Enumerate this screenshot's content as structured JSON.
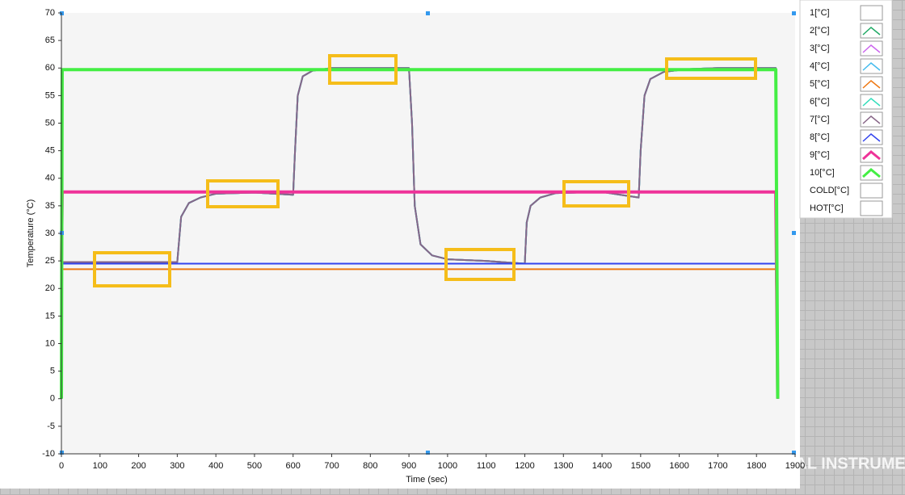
{
  "chart_data": {
    "type": "line",
    "xlabel": "Time (sec)",
    "ylabel": "Temperature (°C)",
    "xlim": [
      0,
      1900
    ],
    "ylim": [
      -10,
      70
    ],
    "xticks": [
      0,
      100,
      200,
      300,
      400,
      500,
      600,
      700,
      800,
      900,
      1000,
      1100,
      1200,
      1300,
      1400,
      1500,
      1600,
      1700,
      1800,
      1900
    ],
    "yticks": [
      -10,
      -5,
      0,
      5,
      10,
      15,
      20,
      25,
      30,
      35,
      40,
      45,
      50,
      55,
      60,
      65,
      70
    ],
    "grid": false,
    "legend": "right",
    "watermark": "NATIONAL INSTRUMENTS",
    "x": [
      0,
      2,
      300,
      310,
      330,
      360,
      400,
      500,
      600,
      605,
      612,
      625,
      650,
      700,
      800,
      900,
      908,
      915,
      930,
      960,
      1000,
      1100,
      1200,
      1205,
      1215,
      1240,
      1280,
      1400,
      1495,
      1500,
      1510,
      1525,
      1560,
      1620,
      1700,
      1850,
      1855
    ],
    "series": [
      {
        "name": "1[°C]",
        "color": "#ffffff",
        "values": [
          null,
          null,
          null,
          null,
          null,
          null,
          null,
          null,
          null,
          null,
          null,
          null,
          null,
          null,
          null,
          null,
          null,
          null,
          null,
          null,
          null,
          null,
          null,
          null,
          null,
          null,
          null,
          null,
          null,
          null,
          null,
          null,
          null,
          null,
          null,
          null,
          null
        ]
      },
      {
        "name": "2[°C]",
        "color": "#22aa66",
        "values": [
          0,
          24.8,
          24.8,
          33,
          35.5,
          36.5,
          37.2,
          37.4,
          37,
          45,
          55,
          58.5,
          59.5,
          60,
          60,
          60,
          50,
          35,
          28,
          26,
          25.3,
          25,
          24.5,
          32,
          35,
          36.5,
          37.3,
          37.5,
          36.5,
          45,
          55,
          58,
          59.3,
          59.8,
          60,
          60,
          0
        ]
      },
      {
        "name": "3[°C]",
        "color": "#cc66ee",
        "values": [
          0,
          24.8,
          24.8,
          33,
          35.5,
          36.5,
          37.2,
          37.4,
          37,
          45,
          55,
          58.5,
          59.5,
          60,
          60,
          60,
          50,
          35,
          28,
          26,
          25.3,
          25,
          24.5,
          32,
          35,
          36.5,
          37.3,
          37.5,
          36.5,
          45,
          55,
          58,
          59.3,
          59.8,
          60,
          60,
          0
        ]
      },
      {
        "name": "4[°C]",
        "color": "#44bbee",
        "values": [
          0,
          24.8,
          24.8,
          33,
          35.5,
          36.5,
          37.2,
          37.4,
          37,
          45,
          55,
          58.5,
          59.5,
          60,
          60,
          60,
          50,
          35,
          28,
          26,
          25.3,
          25,
          24.5,
          32,
          35,
          36.5,
          37.3,
          37.5,
          36.5,
          45,
          55,
          58,
          59.3,
          59.8,
          60,
          60,
          0
        ]
      },
      {
        "name": "5[°C]",
        "color": "#ee7711",
        "values": [
          0,
          23.5,
          23.5,
          23.5,
          23.5,
          23.5,
          23.5,
          23.5,
          23.5,
          23.5,
          23.5,
          23.5,
          23.5,
          23.5,
          23.5,
          23.5,
          23.5,
          23.5,
          23.5,
          23.5,
          23.5,
          23.5,
          23.5,
          23.5,
          23.5,
          23.5,
          23.5,
          23.5,
          23.5,
          23.5,
          23.5,
          23.5,
          23.5,
          23.5,
          23.5,
          23.5,
          0
        ]
      },
      {
        "name": "6[°C]",
        "color": "#33ddbb",
        "values": [
          0,
          24.8,
          24.8,
          33,
          35.5,
          36.5,
          37.2,
          37.4,
          37,
          45,
          55,
          58.5,
          59.5,
          60,
          60,
          60,
          50,
          35,
          28,
          26,
          25.3,
          25,
          24.5,
          32,
          35,
          36.5,
          37.3,
          37.5,
          36.5,
          45,
          55,
          58,
          59.3,
          59.8,
          60,
          60,
          0
        ]
      },
      {
        "name": "7[°C]",
        "color": "#886688",
        "values": [
          0,
          24.8,
          24.8,
          33,
          35.5,
          36.5,
          37.2,
          37.4,
          37,
          45,
          55,
          58.5,
          59.5,
          60,
          60,
          60,
          50,
          35,
          28,
          26,
          25.3,
          25,
          24.5,
          32,
          35,
          36.5,
          37.3,
          37.5,
          36.5,
          45,
          55,
          58,
          59.3,
          59.8,
          60,
          60,
          0
        ]
      },
      {
        "name": "8[°C]",
        "color": "#3344ee",
        "values": [
          0,
          24.5,
          24.5,
          24.5,
          24.5,
          24.5,
          24.5,
          24.5,
          24.5,
          24.5,
          24.5,
          24.5,
          24.5,
          24.5,
          24.5,
          24.5,
          24.5,
          24.5,
          24.5,
          24.5,
          24.5,
          24.5,
          24.5,
          24.5,
          24.5,
          24.5,
          24.5,
          24.5,
          24.5,
          24.5,
          24.5,
          24.5,
          24.5,
          24.5,
          24.5,
          24.5,
          0
        ]
      },
      {
        "name": "9[°C]",
        "color": "#ee3399",
        "values": [
          25,
          37.5,
          37.5,
          37.5,
          37.5,
          37.5,
          37.5,
          37.5,
          37.5,
          37.5,
          37.5,
          37.5,
          37.5,
          37.5,
          37.5,
          37.5,
          37.5,
          37.5,
          37.5,
          37.5,
          37.5,
          37.5,
          37.5,
          37.5,
          37.5,
          37.5,
          37.5,
          37.5,
          37.5,
          37.5,
          37.5,
          37.5,
          37.5,
          37.5,
          37.5,
          37.5,
          0
        ]
      },
      {
        "name": "10[°C]",
        "color": "#44ee44",
        "values": [
          0,
          59.7,
          59.7,
          59.7,
          59.7,
          59.7,
          59.7,
          59.7,
          59.7,
          59.7,
          59.7,
          59.7,
          59.7,
          59.7,
          59.7,
          59.7,
          59.7,
          59.7,
          59.7,
          59.7,
          59.7,
          59.7,
          59.7,
          59.7,
          59.7,
          59.7,
          59.7,
          59.7,
          59.7,
          59.7,
          59.7,
          59.7,
          59.7,
          59.7,
          59.7,
          59.7,
          0
        ]
      },
      {
        "name": "COLD[°C]",
        "color": "#ffffff",
        "values": [
          null,
          null,
          null,
          null,
          null,
          null,
          null,
          null,
          null,
          null,
          null,
          null,
          null,
          null,
          null,
          null,
          null,
          null,
          null,
          null,
          null,
          null,
          null,
          null,
          null,
          null,
          null,
          null,
          null,
          null,
          null,
          null,
          null,
          null,
          null,
          null,
          null
        ]
      },
      {
        "name": "HOT[°C]",
        "color": "#ffffff",
        "values": [
          null,
          null,
          null,
          null,
          null,
          null,
          null,
          null,
          null,
          null,
          null,
          null,
          null,
          null,
          null,
          null,
          null,
          null,
          null,
          null,
          null,
          null,
          null,
          null,
          null,
          null,
          null,
          null,
          null,
          null,
          null,
          null,
          null,
          null,
          null,
          null,
          null
        ]
      }
    ]
  }
}
